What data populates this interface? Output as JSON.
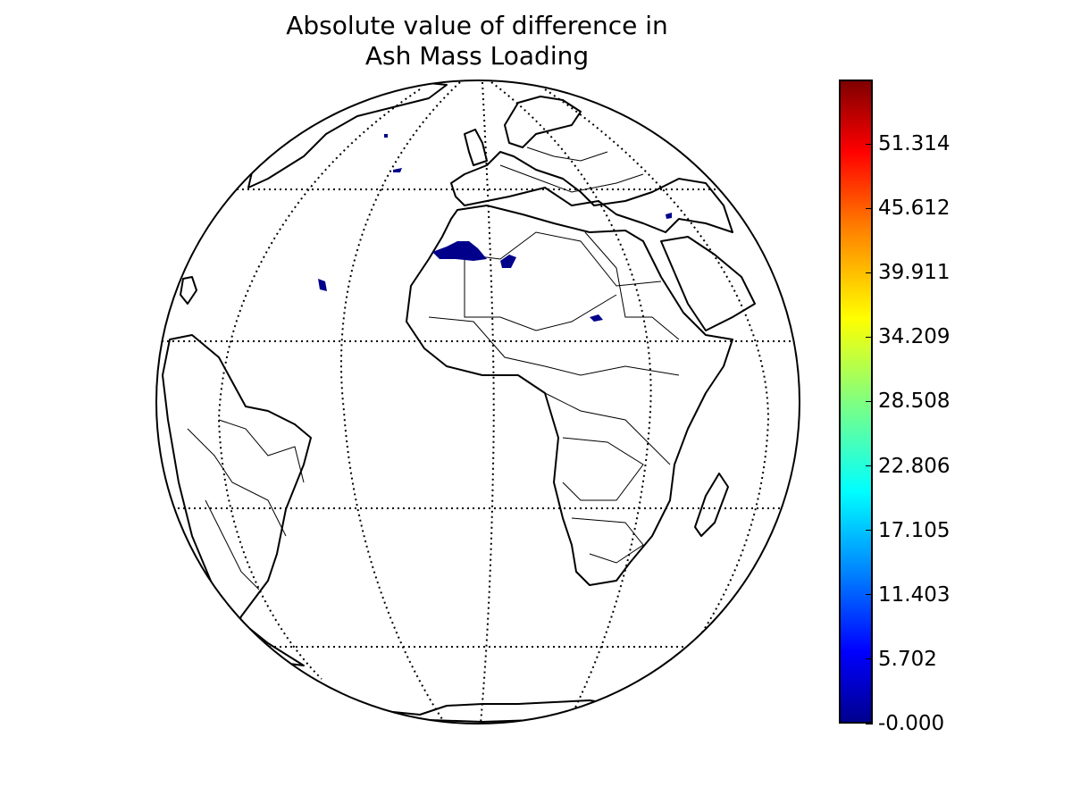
{
  "title": [
    "Absolute value of difference in",
    "Ash Mass Loading"
  ],
  "colorbar": {
    "colormap": "jet",
    "ticks": [
      "51.314",
      "45.612",
      "39.911",
      "34.209",
      "28.508",
      "22.806",
      "17.105",
      "11.403",
      "5.702",
      "-0.000"
    ],
    "tick_values": [
      51.314,
      45.612,
      39.911,
      34.209,
      28.508,
      22.806,
      17.105,
      11.403,
      5.702,
      0.0
    ],
    "max": 57.015,
    "min": 0.0
  },
  "map": {
    "projection": "orthographic",
    "central_longitude": 0,
    "central_latitude": 0,
    "graticule": "dotted",
    "data_color": "#00008b"
  }
}
